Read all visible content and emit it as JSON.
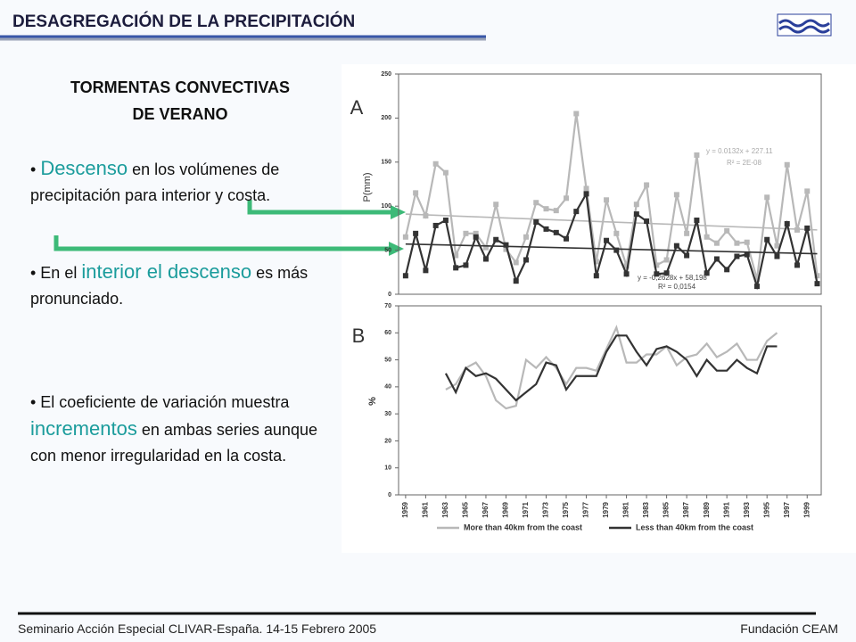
{
  "header": {
    "title": "DESAGREGACIÓN DE LA PRECIPITACIÓN"
  },
  "subheading": [
    "TORMENTAS CONVECTIVAS",
    "DE VERANO"
  ],
  "bullets": [
    [
      {
        "text": "• "
      },
      {
        "text": "Descenso",
        "em": true
      },
      {
        "text": " en los volúmenes de precipitación para interior y costa."
      }
    ],
    [
      {
        "text": "• En el "
      },
      {
        "text": "interior el descenso",
        "em": true
      },
      {
        "text": " es más pronunciado."
      }
    ],
    [
      {
        "text": "• El coeficiente de variación muestra "
      },
      {
        "text": "incrementos",
        "em": true
      },
      {
        "text": " en ambas series aunque con menor irregularidad en la costa."
      }
    ]
  ],
  "footer": {
    "left": "Seminario Acción Especial CLIVAR-España. 14-15 Febrero 2005",
    "right": "Fundación CEAM"
  },
  "chart_data": [
    {
      "type": "line",
      "panel": "A",
      "ylabel": "P(mm)",
      "markers": true,
      "xlim": [
        1958.3,
        2000.4
      ],
      "ylim": [
        0,
        250
      ],
      "yticks": [
        0,
        50,
        100,
        150,
        200,
        250
      ],
      "x": [
        1959,
        1960,
        1961,
        1962,
        1963,
        1964,
        1965,
        1966,
        1967,
        1968,
        1969,
        1970,
        1971,
        1972,
        1973,
        1974,
        1975,
        1976,
        1977,
        1978,
        1979,
        1980,
        1981,
        1982,
        1983,
        1984,
        1985,
        1986,
        1987,
        1988,
        1989,
        1990,
        1991,
        1992,
        1993,
        1994,
        1995,
        1996,
        1997,
        1998,
        1999,
        2000
      ],
      "series": [
        {
          "name": "More than 40km from the coast",
          "color": "#b8b8b8",
          "values": [
            65,
            115,
            89,
            148,
            138,
            44,
            69,
            69,
            53,
            102,
            51,
            36,
            65,
            104,
            97,
            95,
            109,
            205,
            120,
            37,
            107,
            69,
            32,
            102,
            124,
            33,
            39,
            113,
            69,
            158,
            65,
            58,
            72,
            58,
            59,
            17,
            110,
            55,
            147,
            73,
            117,
            21
          ],
          "trend": {
            "x": [
              1959,
              2000
            ],
            "values": [
              91,
              73
            ]
          }
        },
        {
          "name": "Less than 40km from the coast",
          "color": "#333333",
          "values": [
            21,
            69,
            27,
            78,
            84,
            30,
            33,
            65,
            40,
            62,
            56,
            15,
            39,
            82,
            74,
            70,
            63,
            94,
            114,
            21,
            61,
            50,
            23,
            91,
            83,
            23,
            24,
            55,
            44,
            84,
            24,
            40,
            28,
            43,
            45,
            9,
            62,
            43,
            80,
            33,
            75,
            12
          ],
          "trend": {
            "x": [
              1959,
              2000
            ],
            "values": [
              57,
              46
            ]
          }
        }
      ],
      "annotations": [
        "y = 0.0132x + 227.11",
        "R² = 2E-08",
        "y = -0,2628x + 58,198",
        "R² = 0,0154"
      ]
    },
    {
      "type": "line",
      "panel": "B",
      "ylabel": "%",
      "markers": false,
      "legend": "bottom",
      "xlim": [
        1958.3,
        2000.4
      ],
      "ylim": [
        0,
        70
      ],
      "yticks": [
        0,
        10,
        20,
        30,
        40,
        50,
        60,
        70
      ],
      "xticks": [
        1959,
        1961,
        1963,
        1965,
        1967,
        1969,
        1971,
        1973,
        1975,
        1977,
        1979,
        1981,
        1983,
        1985,
        1987,
        1989,
        1991,
        1993,
        1995,
        1997,
        1999
      ],
      "x": [
        1963,
        1964,
        1965,
        1966,
        1967,
        1968,
        1969,
        1970,
        1971,
        1972,
        1973,
        1974,
        1975,
        1976,
        1977,
        1978,
        1979,
        1980,
        1981,
        1982,
        1983,
        1984,
        1985,
        1986,
        1987,
        1988,
        1989,
        1990,
        1991,
        1992,
        1993,
        1994,
        1995,
        1996
      ],
      "series": [
        {
          "name": "More than 40km from the coast",
          "color": "#b8b8b8",
          "values": [
            39,
            41,
            47,
            49,
            44,
            35,
            32,
            33,
            50,
            47,
            51,
            47,
            41,
            47,
            47,
            46,
            54,
            62,
            49,
            49,
            52,
            52,
            55,
            48,
            51,
            52,
            56,
            51,
            53,
            56,
            50,
            50,
            57,
            60
          ]
        },
        {
          "name": "Less than 40km from the coast",
          "color": "#333333",
          "values": [
            45,
            38,
            47,
            44,
            45,
            43,
            39,
            35,
            38,
            41,
            49,
            48,
            39,
            44,
            44,
            44,
            53,
            59,
            59,
            53,
            48,
            54,
            55,
            53,
            50,
            44,
            50,
            46,
            46,
            50,
            47,
            45,
            55,
            55
          ]
        }
      ]
    }
  ]
}
